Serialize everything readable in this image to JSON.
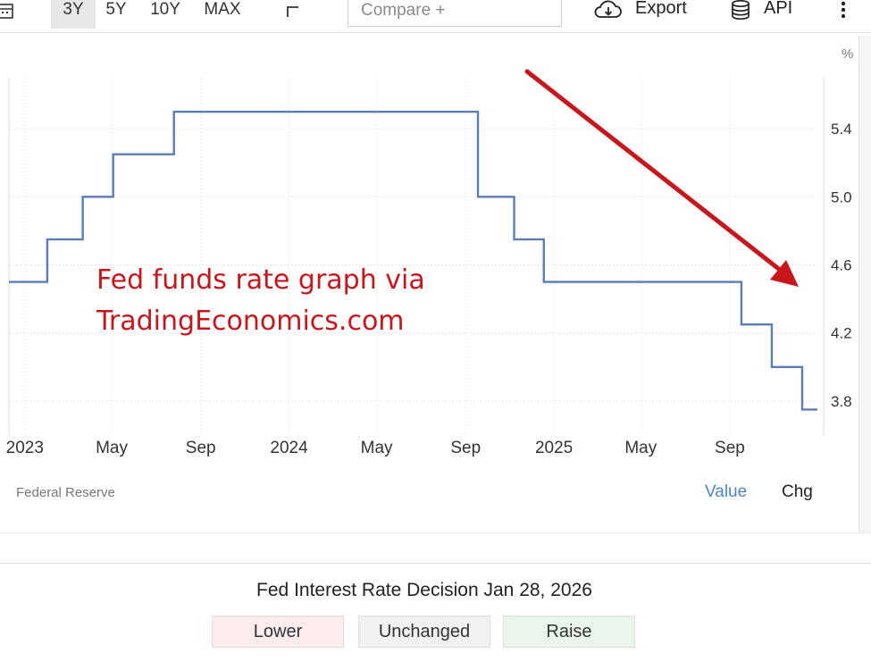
{
  "toolbar": {
    "ranges": [
      "3Y",
      "5Y",
      "10Y",
      "MAX"
    ],
    "active_range": "3Y",
    "compare_placeholder": "Compare +",
    "export_label": "Export",
    "api_label": "API",
    "icons": [
      "calendar-icon",
      "chart-type-icon",
      "cloud-download-icon",
      "database-icon",
      "more-vertical-icon"
    ]
  },
  "chart_data": {
    "type": "line",
    "step": true,
    "x_axis_ticks": [
      "2023",
      "May",
      "Sep",
      "2024",
      "May",
      "Sep",
      "2025",
      "May",
      "Sep"
    ],
    "x_axis_tick_dates": [
      "2023-01-01",
      "2023-05-01",
      "2023-09-01",
      "2024-01-01",
      "2024-05-01",
      "2024-09-01",
      "2025-01-01",
      "2025-05-01",
      "2025-09-01"
    ],
    "y_unit": "%",
    "y_ticks": [
      3.8,
      4.2,
      4.6,
      5.0,
      5.4
    ],
    "ylim": [
      3.6,
      5.7
    ],
    "xlim": [
      "2022-12-10",
      "2025-12-31"
    ],
    "grid": true,
    "series": [
      {
        "color": "#5a7db5",
        "x": [
          "2022-12-10",
          "2023-02-01",
          "2023-03-22",
          "2023-05-03",
          "2023-07-26",
          "2024-09-18",
          "2024-11-07",
          "2024-12-18",
          "2025-09-17",
          "2025-10-29",
          "2025-12-10",
          "2025-12-31"
        ],
        "values": [
          4.5,
          4.75,
          5.0,
          5.25,
          5.5,
          5.0,
          4.75,
          4.5,
          4.25,
          4.0,
          3.75,
          3.75
        ]
      }
    ]
  },
  "annotation": {
    "text_line1": "Fed funds rate graph via",
    "text_line2": "TradingEconomics.com",
    "color": "#c8161d"
  },
  "footer": {
    "source": "Federal Reserve",
    "value_label": "Value",
    "chg_label": "Chg"
  },
  "decision": {
    "title": "Fed Interest Rate Decision Jan 28, 2026",
    "lower_label": "Lower",
    "unchanged_label": "Unchanged",
    "raise_label": "Raise"
  }
}
